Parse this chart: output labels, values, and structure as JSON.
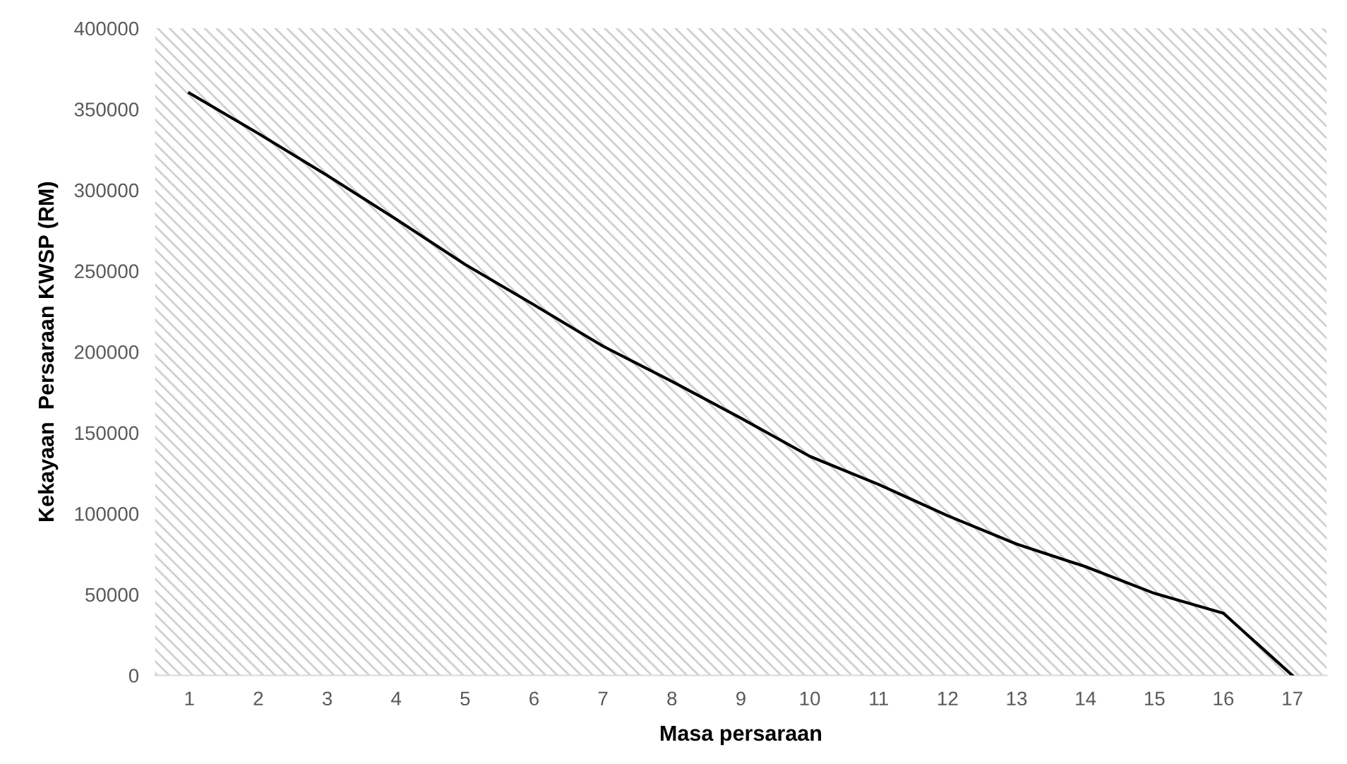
{
  "chart_data": {
    "type": "line",
    "xlabel": "Masa persaraan",
    "ylabel": "Kekayaan  Persaraan KWSP (RM)",
    "categories": [
      "1",
      "2",
      "3",
      "4",
      "5",
      "6",
      "7",
      "8",
      "9",
      "10",
      "11",
      "12",
      "13",
      "14",
      "15",
      "16",
      "17"
    ],
    "series": [
      {
        "color": "#000000",
        "values": [
          360000,
          335000,
          309000,
          282000,
          254000,
          229000,
          203500,
          181700,
          159000,
          135400,
          118000,
          98700,
          81200,
          67200,
          50700,
          38400,
          0
        ]
      }
    ],
    "ylim": [
      0,
      400000
    ],
    "yticks": [
      0,
      50000,
      100000,
      150000,
      200000,
      250000,
      300000,
      350000,
      400000
    ],
    "grid": false,
    "legend": false,
    "marker": "none",
    "line_style": "solid"
  }
}
